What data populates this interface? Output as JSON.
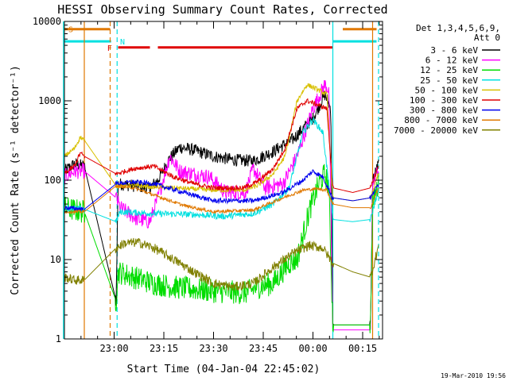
{
  "chart_data": {
    "type": "line",
    "title": "HESSI Observing Summary Count Rates, Corrected",
    "xlabel": "Start Time (04-Jan-04 22:45:02)",
    "ylabel": "Corrected Count Rate (s⁻¹ detector⁻¹)",
    "xlim": [
      22.75,
      24.35
    ],
    "ylim": [
      1,
      10000
    ],
    "yscale": "log",
    "x_ticks": [
      {
        "x": 23.0,
        "label": "23:00"
      },
      {
        "x": 23.25,
        "label": "23:15"
      },
      {
        "x": 23.5,
        "label": "23:30"
      },
      {
        "x": 23.75,
        "label": "23:45"
      },
      {
        "x": 24.0,
        "label": "00:00"
      },
      {
        "x": 24.25,
        "label": "00:15"
      }
    ],
    "y_ticks": [
      {
        "y": 1,
        "label": "1"
      },
      {
        "y": 10,
        "label": "10"
      },
      {
        "y": 100,
        "label": "100"
      },
      {
        "y": 1000,
        "label": "1000"
      },
      {
        "y": 10000,
        "label": "10000"
      }
    ],
    "legend": {
      "placement": "top-right",
      "header1": "Det 1,3,4,5,6,9,",
      "header2": "Att 0"
    },
    "timestamp": "19-Mar-2010 19:56",
    "flags": [
      {
        "label": "S",
        "color": "#e07800",
        "y": 8000,
        "segments": [
          [
            22.75,
            22.98
          ],
          [
            24.15,
            24.32
          ]
        ],
        "label_x": 22.77
      },
      {
        "label": "N",
        "color": "#00e0e0",
        "y": 5600,
        "segments": [
          [
            22.75,
            22.985
          ],
          [
            24.1,
            24.32
          ]
        ],
        "label_x": 23.03
      },
      {
        "label": "F",
        "color": "#e00000",
        "y": 4700,
        "segments": [
          [
            23.02,
            23.18
          ],
          [
            23.22,
            24.1
          ]
        ],
        "label_x": 22.965
      }
    ],
    "vlines": [
      {
        "x": 22.745,
        "color": "#00e0e0",
        "dash": false
      },
      {
        "x": 22.85,
        "color": "#e07800",
        "dash": false
      },
      {
        "x": 22.98,
        "color": "#e07800",
        "dash": true
      },
      {
        "x": 23.015,
        "color": "#00e0e0",
        "dash": true
      },
      {
        "x": 24.1,
        "color": "#00e0e0",
        "dash": false
      },
      {
        "x": 24.3,
        "color": "#e07800",
        "dash": false
      },
      {
        "x": 24.33,
        "color": "#00e0e0",
        "dash": true
      }
    ],
    "gaps": [
      [
        22.85,
        23.01
      ],
      [
        24.1,
        24.29
      ]
    ],
    "series": [
      {
        "name": "3 - 6 keV",
        "color": "#000000",
        "noise": 0.08,
        "points": [
          [
            22.75,
            130
          ],
          [
            22.8,
            160
          ],
          [
            22.85,
            150
          ],
          [
            23.01,
            3
          ],
          [
            23.02,
            90
          ],
          [
            23.1,
            85
          ],
          [
            23.18,
            80
          ],
          [
            23.22,
            100
          ],
          [
            23.28,
            190
          ],
          [
            23.33,
            260
          ],
          [
            23.4,
            240
          ],
          [
            23.5,
            200
          ],
          [
            23.6,
            180
          ],
          [
            23.7,
            175
          ],
          [
            23.8,
            230
          ],
          [
            23.9,
            330
          ],
          [
            24.0,
            600
          ],
          [
            24.06,
            1200
          ],
          [
            24.09,
            800
          ],
          [
            24.1,
            1.5
          ],
          [
            24.29,
            1.5
          ],
          [
            24.3,
            100
          ],
          [
            24.33,
            160
          ]
        ]
      },
      {
        "name": "6 - 12 keV",
        "color": "#ff00ff",
        "noise": 0.1,
        "points": [
          [
            22.75,
            110
          ],
          [
            22.8,
            130
          ],
          [
            22.85,
            130
          ],
          [
            23.01,
            60
          ],
          [
            23.03,
            45
          ],
          [
            23.12,
            32
          ],
          [
            23.18,
            30
          ],
          [
            23.22,
            60
          ],
          [
            23.28,
            200
          ],
          [
            23.33,
            130
          ],
          [
            23.4,
            120
          ],
          [
            23.48,
            110
          ],
          [
            23.56,
            70
          ],
          [
            23.66,
            70
          ],
          [
            23.7,
            140
          ],
          [
            23.76,
            80
          ],
          [
            23.85,
            90
          ],
          [
            23.92,
            200
          ],
          [
            24.0,
            800
          ],
          [
            24.06,
            1600
          ],
          [
            24.08,
            1400
          ],
          [
            24.1,
            1.3
          ],
          [
            24.29,
            1.3
          ],
          [
            24.3,
            90
          ],
          [
            24.33,
            140
          ]
        ]
      },
      {
        "name": "12 - 25 keV",
        "color": "#00dd00",
        "noise": 0.15,
        "points": [
          [
            22.75,
            45
          ],
          [
            22.8,
            42
          ],
          [
            22.85,
            40
          ],
          [
            23.01,
            3
          ],
          [
            23.02,
            7
          ],
          [
            23.1,
            6
          ],
          [
            23.2,
            5
          ],
          [
            23.3,
            4.5
          ],
          [
            23.5,
            4
          ],
          [
            23.66,
            3.8
          ],
          [
            23.72,
            4.5
          ],
          [
            23.8,
            5
          ],
          [
            23.88,
            9
          ],
          [
            23.92,
            10
          ],
          [
            23.98,
            40
          ],
          [
            24.03,
            90
          ],
          [
            24.06,
            120
          ],
          [
            24.08,
            80
          ],
          [
            24.1,
            1.5
          ],
          [
            24.29,
            1.5
          ],
          [
            24.3,
            50
          ],
          [
            24.33,
            90
          ]
        ]
      },
      {
        "name": "25 - 50 keV",
        "color": "#00e0e0",
        "noise": 0.04,
        "points": [
          [
            22.75,
            45
          ],
          [
            22.8,
            44
          ],
          [
            22.85,
            43
          ],
          [
            23.01,
            30
          ],
          [
            23.03,
            40
          ],
          [
            23.2,
            38
          ],
          [
            23.4,
            37
          ],
          [
            23.55,
            35
          ],
          [
            23.7,
            38
          ],
          [
            23.8,
            50
          ],
          [
            23.88,
            80
          ],
          [
            23.95,
            400
          ],
          [
            24.0,
            580
          ],
          [
            24.05,
            400
          ],
          [
            24.1,
            32
          ],
          [
            24.2,
            30
          ],
          [
            24.29,
            32
          ],
          [
            24.33,
            80
          ]
        ]
      },
      {
        "name": "50 - 100 keV",
        "color": "#d8c000",
        "noise": 0.03,
        "points": [
          [
            22.75,
            200
          ],
          [
            22.8,
            250
          ],
          [
            22.83,
            350
          ],
          [
            22.85,
            320
          ],
          [
            23.01,
            85
          ],
          [
            23.1,
            85
          ],
          [
            23.3,
            80
          ],
          [
            23.5,
            75
          ],
          [
            23.65,
            75
          ],
          [
            23.72,
            85
          ],
          [
            23.8,
            120
          ],
          [
            23.86,
            200
          ],
          [
            23.92,
            1000
          ],
          [
            23.97,
            1600
          ],
          [
            24.02,
            1400
          ],
          [
            24.07,
            1200
          ],
          [
            24.1,
            60
          ],
          [
            24.2,
            55
          ],
          [
            24.29,
            60
          ],
          [
            24.33,
            120
          ]
        ]
      },
      {
        "name": "100 - 300 keV",
        "color": "#e00000",
        "noise": 0.03,
        "points": [
          [
            22.75,
            120
          ],
          [
            22.8,
            150
          ],
          [
            22.83,
            220
          ],
          [
            22.85,
            200
          ],
          [
            23.01,
            120
          ],
          [
            23.1,
            140
          ],
          [
            23.2,
            150
          ],
          [
            23.3,
            110
          ],
          [
            23.4,
            90
          ],
          [
            23.5,
            80
          ],
          [
            23.65,
            80
          ],
          [
            23.72,
            95
          ],
          [
            23.8,
            140
          ],
          [
            23.86,
            250
          ],
          [
            23.92,
            800
          ],
          [
            23.97,
            1000
          ],
          [
            24.02,
            900
          ],
          [
            24.07,
            800
          ],
          [
            24.1,
            80
          ],
          [
            24.2,
            70
          ],
          [
            24.29,
            80
          ],
          [
            24.33,
            150
          ]
        ]
      },
      {
        "name": "300 - 800 keV",
        "color": "#0000ee",
        "noise": 0.03,
        "points": [
          [
            22.75,
            45
          ],
          [
            22.8,
            44
          ],
          [
            22.85,
            43
          ],
          [
            23.01,
            90
          ],
          [
            23.1,
            95
          ],
          [
            23.2,
            90
          ],
          [
            23.35,
            70
          ],
          [
            23.5,
            55
          ],
          [
            23.7,
            55
          ],
          [
            23.85,
            70
          ],
          [
            23.95,
            100
          ],
          [
            24.0,
            130
          ],
          [
            24.05,
            110
          ],
          [
            24.1,
            60
          ],
          [
            24.2,
            55
          ],
          [
            24.29,
            60
          ],
          [
            24.33,
            90
          ]
        ]
      },
      {
        "name": "800 - 7000 keV",
        "color": "#e07800",
        "noise": 0.02,
        "points": [
          [
            22.75,
            40
          ],
          [
            22.8,
            40
          ],
          [
            22.85,
            40
          ],
          [
            23.01,
            85
          ],
          [
            23.1,
            80
          ],
          [
            23.2,
            65
          ],
          [
            23.35,
            48
          ],
          [
            23.5,
            40
          ],
          [
            23.7,
            42
          ],
          [
            23.85,
            60
          ],
          [
            23.95,
            75
          ],
          [
            24.02,
            78
          ],
          [
            24.07,
            75
          ],
          [
            24.1,
            50
          ],
          [
            24.2,
            45
          ],
          [
            24.29,
            45
          ],
          [
            24.33,
            80
          ]
        ]
      },
      {
        "name": "7000 - 20000 keV",
        "color": "#808000",
        "noise": 0.06,
        "points": [
          [
            22.75,
            6
          ],
          [
            22.8,
            5.5
          ],
          [
            22.85,
            5.5
          ],
          [
            23.01,
            14
          ],
          [
            23.05,
            16
          ],
          [
            23.12,
            16.5
          ],
          [
            23.2,
            14
          ],
          [
            23.3,
            10
          ],
          [
            23.4,
            7
          ],
          [
            23.5,
            5
          ],
          [
            23.6,
            4.5
          ],
          [
            23.7,
            5
          ],
          [
            23.8,
            8
          ],
          [
            23.9,
            12
          ],
          [
            23.98,
            15
          ],
          [
            24.05,
            14
          ],
          [
            24.1,
            9
          ],
          [
            24.2,
            7
          ],
          [
            24.29,
            6
          ],
          [
            24.33,
            15
          ]
        ]
      }
    ]
  }
}
